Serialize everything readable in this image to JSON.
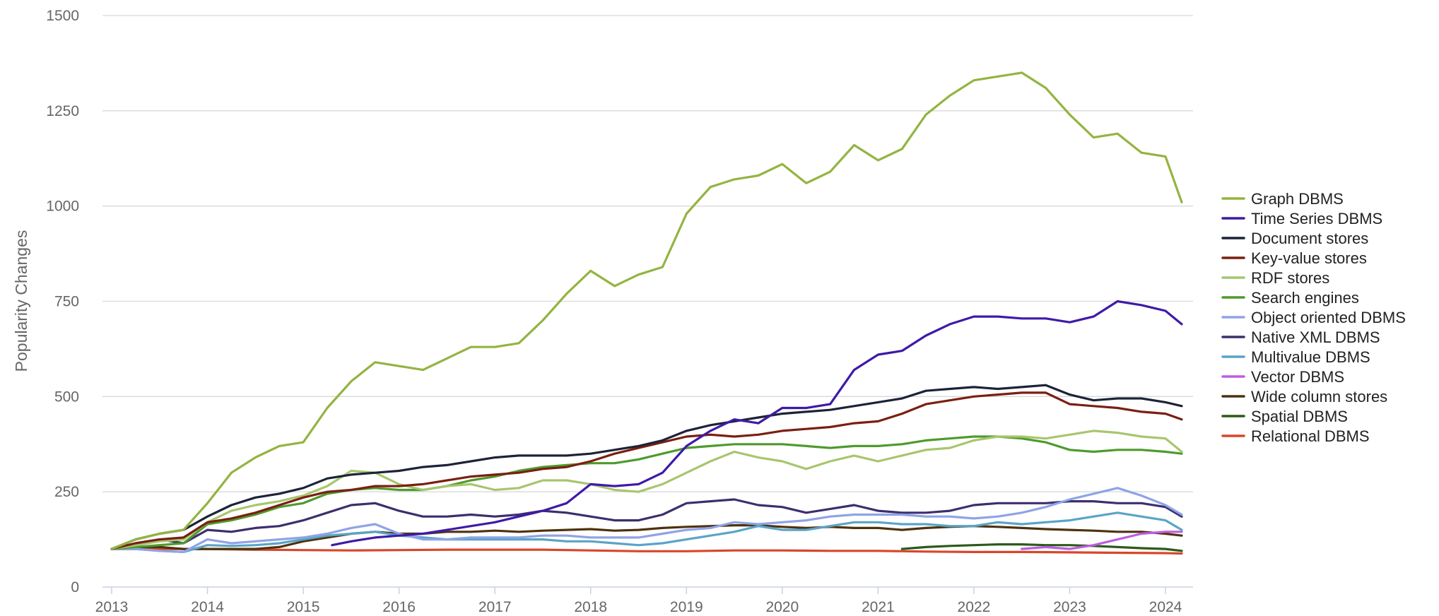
{
  "chart_data": {
    "type": "line",
    "ylabel": "Popularity Changes",
    "xlabel": "",
    "ylim": [
      0,
      1500
    ],
    "xlim": [
      2013,
      2024.25
    ],
    "y_ticks": [
      "0",
      "250",
      "500",
      "750",
      "1000",
      "1250",
      "1500"
    ],
    "x_ticks": [
      "2013",
      "2014",
      "2015",
      "2016",
      "2017",
      "2018",
      "2019",
      "2020",
      "2021",
      "2022",
      "2023",
      "2024"
    ],
    "grid": "horizontal",
    "legend_position": "right",
    "series": [
      {
        "name": "Graph DBMS",
        "color": "#93b441",
        "x": [
          2013,
          2013.25,
          2013.5,
          2013.75,
          2014,
          2014.25,
          2014.5,
          2014.75,
          2015,
          2015.25,
          2015.5,
          2015.75,
          2016,
          2016.25,
          2016.5,
          2016.75,
          2017,
          2017.25,
          2017.5,
          2017.75,
          2018,
          2018.25,
          2018.5,
          2018.75,
          2019,
          2019.25,
          2019.5,
          2019.75,
          2020,
          2020.25,
          2020.5,
          2020.75,
          2021,
          2021.25,
          2021.5,
          2021.75,
          2022,
          2022.25,
          2022.5,
          2022.75,
          2023,
          2023.25,
          2023.5,
          2023.75,
          2024,
          2024.17
        ],
        "y": [
          100,
          125,
          140,
          150,
          220,
          300,
          340,
          370,
          380,
          470,
          540,
          590,
          580,
          570,
          600,
          630,
          630,
          640,
          700,
          770,
          830,
          790,
          820,
          840,
          980,
          1050,
          1070,
          1080,
          1110,
          1060,
          1090,
          1160,
          1120,
          1150,
          1240,
          1290,
          1330,
          1340,
          1350,
          1310,
          1240,
          1180,
          1190,
          1140,
          1130,
          1010
        ]
      },
      {
        "name": "Time Series DBMS",
        "color": "#3f1aa7",
        "x": [
          2015.3,
          2015.5,
          2015.75,
          2016,
          2016.25,
          2016.5,
          2016.75,
          2017,
          2017.25,
          2017.5,
          2017.75,
          2018,
          2018.25,
          2018.5,
          2018.75,
          2019,
          2019.25,
          2019.5,
          2019.75,
          2020,
          2020.25,
          2020.5,
          2020.75,
          2021,
          2021.25,
          2021.5,
          2021.75,
          2022,
          2022.25,
          2022.5,
          2022.75,
          2023,
          2023.25,
          2023.5,
          2023.75,
          2024,
          2024.17
        ],
        "y": [
          110,
          120,
          130,
          135,
          140,
          150,
          160,
          170,
          185,
          200,
          220,
          270,
          265,
          270,
          300,
          370,
          410,
          440,
          430,
          470,
          470,
          480,
          570,
          610,
          620,
          660,
          690,
          710,
          710,
          705,
          705,
          695,
          710,
          750,
          740,
          725,
          690
        ]
      },
      {
        "name": "Document stores",
        "color": "#1c2338",
        "x": [
          2013,
          2013.25,
          2013.5,
          2013.75,
          2014,
          2014.25,
          2014.5,
          2014.75,
          2015,
          2015.25,
          2015.5,
          2015.75,
          2016,
          2016.25,
          2016.5,
          2016.75,
          2017,
          2017.25,
          2017.5,
          2017.75,
          2018,
          2018.25,
          2018.5,
          2018.75,
          2019,
          2019.25,
          2019.5,
          2019.75,
          2020,
          2020.25,
          2020.5,
          2020.75,
          2021,
          2021.25,
          2021.5,
          2021.75,
          2022,
          2022.25,
          2022.5,
          2022.75,
          2023,
          2023.25,
          2023.5,
          2023.75,
          2024,
          2024.17
        ],
        "y": [
          100,
          125,
          140,
          150,
          185,
          215,
          235,
          245,
          260,
          285,
          295,
          300,
          305,
          315,
          320,
          330,
          340,
          345,
          345,
          345,
          350,
          360,
          370,
          385,
          410,
          425,
          435,
          445,
          455,
          460,
          465,
          475,
          485,
          495,
          515,
          520,
          525,
          520,
          525,
          530,
          505,
          490,
          495,
          495,
          485,
          475
        ]
      },
      {
        "name": "Key-value stores",
        "color": "#7a1f12",
        "x": [
          2013,
          2013.25,
          2013.5,
          2013.75,
          2014,
          2014.25,
          2014.5,
          2014.75,
          2015,
          2015.25,
          2015.5,
          2015.75,
          2016,
          2016.25,
          2016.5,
          2016.75,
          2017,
          2017.25,
          2017.5,
          2017.75,
          2018,
          2018.25,
          2018.5,
          2018.75,
          2019,
          2019.25,
          2019.5,
          2019.75,
          2020,
          2020.25,
          2020.5,
          2020.75,
          2021,
          2021.25,
          2021.5,
          2021.75,
          2022,
          2022.25,
          2022.5,
          2022.75,
          2023,
          2023.25,
          2023.5,
          2023.75,
          2024,
          2024.17
        ],
        "y": [
          100,
          115,
          125,
          130,
          170,
          180,
          195,
          215,
          235,
          250,
          255,
          265,
          265,
          270,
          280,
          290,
          295,
          300,
          310,
          315,
          330,
          350,
          365,
          380,
          395,
          400,
          395,
          400,
          410,
          415,
          420,
          430,
          435,
          455,
          480,
          490,
          500,
          505,
          510,
          510,
          480,
          475,
          470,
          460,
          455,
          440
        ]
      },
      {
        "name": "RDF stores",
        "color": "#a7c66e",
        "x": [
          2013,
          2013.25,
          2013.5,
          2013.75,
          2014,
          2014.25,
          2014.5,
          2014.75,
          2015,
          2015.25,
          2015.5,
          2015.75,
          2016,
          2016.25,
          2016.5,
          2016.75,
          2017,
          2017.25,
          2017.5,
          2017.75,
          2018,
          2018.25,
          2018.5,
          2018.75,
          2019,
          2019.25,
          2019.5,
          2019.75,
          2020,
          2020.25,
          2020.5,
          2020.75,
          2021,
          2021.25,
          2021.5,
          2021.75,
          2022,
          2022.25,
          2022.5,
          2022.75,
          2023,
          2023.25,
          2023.5,
          2023.75,
          2024,
          2024.17
        ],
        "y": [
          100,
          110,
          120,
          125,
          170,
          200,
          215,
          225,
          240,
          265,
          305,
          300,
          270,
          255,
          265,
          270,
          255,
          260,
          280,
          280,
          270,
          255,
          250,
          270,
          300,
          330,
          355,
          340,
          330,
          310,
          330,
          345,
          330,
          345,
          360,
          365,
          385,
          395,
          395,
          390,
          400,
          410,
          405,
          395,
          390,
          355
        ]
      },
      {
        "name": "Search engines",
        "color": "#4f9a2d",
        "x": [
          2013,
          2013.25,
          2013.5,
          2013.75,
          2014,
          2014.25,
          2014.5,
          2014.75,
          2015,
          2015.25,
          2015.5,
          2015.75,
          2016,
          2016.25,
          2016.5,
          2016.75,
          2017,
          2017.25,
          2017.5,
          2017.75,
          2018,
          2018.25,
          2018.5,
          2018.75,
          2019,
          2019.25,
          2019.5,
          2019.75,
          2020,
          2020.25,
          2020.5,
          2020.75,
          2021,
          2021.25,
          2021.5,
          2021.75,
          2022,
          2022.25,
          2022.5,
          2022.75,
          2023,
          2023.25,
          2023.5,
          2023.75,
          2024,
          2024.17
        ],
        "y": [
          100,
          105,
          110,
          115,
          165,
          175,
          190,
          210,
          220,
          245,
          255,
          260,
          255,
          255,
          265,
          280,
          290,
          305,
          315,
          320,
          325,
          325,
          335,
          350,
          365,
          370,
          375,
          375,
          375,
          370,
          365,
          370,
          370,
          375,
          385,
          390,
          395,
          395,
          390,
          380,
          360,
          355,
          360,
          360,
          355,
          350
        ]
      },
      {
        "name": "Object oriented DBMS",
        "color": "#8fa3e6",
        "x": [
          2013,
          2013.25,
          2013.5,
          2013.75,
          2014,
          2014.25,
          2014.5,
          2014.75,
          2015,
          2015.25,
          2015.5,
          2015.75,
          2016,
          2016.25,
          2016.5,
          2016.75,
          2017,
          2017.25,
          2017.5,
          2017.75,
          2018,
          2018.25,
          2018.5,
          2018.75,
          2019,
          2019.25,
          2019.5,
          2019.75,
          2020,
          2020.25,
          2020.5,
          2020.75,
          2021,
          2021.25,
          2021.5,
          2021.75,
          2022,
          2022.25,
          2022.5,
          2022.75,
          2023,
          2023.25,
          2023.5,
          2023.75,
          2024,
          2024.17
        ],
        "y": [
          100,
          100,
          95,
          92,
          125,
          115,
          120,
          125,
          130,
          140,
          155,
          165,
          140,
          125,
          125,
          130,
          130,
          130,
          135,
          135,
          130,
          130,
          130,
          140,
          150,
          155,
          170,
          165,
          170,
          175,
          185,
          190,
          190,
          190,
          185,
          185,
          180,
          185,
          195,
          210,
          230,
          245,
          260,
          240,
          215,
          190
        ]
      },
      {
        "name": "Native XML DBMS",
        "color": "#3d2e6e",
        "x": [
          2013,
          2013.25,
          2013.5,
          2013.75,
          2014,
          2014.25,
          2014.5,
          2014.75,
          2015,
          2015.25,
          2015.5,
          2015.75,
          2016,
          2016.25,
          2016.5,
          2016.75,
          2017,
          2017.25,
          2017.5,
          2017.75,
          2018,
          2018.25,
          2018.5,
          2018.75,
          2019,
          2019.25,
          2019.5,
          2019.75,
          2020,
          2020.25,
          2020.5,
          2020.75,
          2021,
          2021.25,
          2021.5,
          2021.75,
          2022,
          2022.25,
          2022.5,
          2022.75,
          2023,
          2023.25,
          2023.5,
          2023.75,
          2024,
          2024.17
        ],
        "y": [
          100,
          115,
          125,
          115,
          150,
          145,
          155,
          160,
          175,
          195,
          215,
          220,
          200,
          185,
          185,
          190,
          185,
          190,
          200,
          195,
          185,
          175,
          175,
          190,
          220,
          225,
          230,
          215,
          210,
          195,
          205,
          215,
          200,
          195,
          195,
          200,
          215,
          220,
          220,
          220,
          225,
          225,
          220,
          220,
          210,
          185
        ]
      },
      {
        "name": "Multivalue DBMS",
        "color": "#5aa4c7",
        "x": [
          2013,
          2013.25,
          2013.5,
          2013.75,
          2014,
          2014.25,
          2014.5,
          2014.75,
          2015,
          2015.25,
          2015.5,
          2015.75,
          2016,
          2016.25,
          2016.5,
          2016.75,
          2017,
          2017.25,
          2017.5,
          2017.75,
          2018,
          2018.25,
          2018.5,
          2018.75,
          2019,
          2019.25,
          2019.5,
          2019.75,
          2020,
          2020.25,
          2020.5,
          2020.75,
          2021,
          2021.25,
          2021.5,
          2021.75,
          2022,
          2022.25,
          2022.5,
          2022.75,
          2023,
          2023.25,
          2023.5,
          2023.75,
          2024,
          2024.17
        ],
        "y": [
          100,
          100,
          95,
          92,
          110,
          108,
          110,
          115,
          125,
          135,
          140,
          145,
          135,
          130,
          125,
          125,
          125,
          125,
          125,
          120,
          120,
          115,
          110,
          115,
          125,
          135,
          145,
          160,
          150,
          150,
          160,
          170,
          170,
          165,
          165,
          160,
          160,
          170,
          165,
          170,
          175,
          185,
          195,
          185,
          175,
          150
        ]
      },
      {
        "name": "Vector DBMS",
        "color": "#c05ce0",
        "x": [
          2022.5,
          2022.75,
          2023,
          2023.25,
          2023.5,
          2023.75,
          2024,
          2024.17
        ],
        "y": [
          100,
          105,
          100,
          110,
          125,
          140,
          145,
          145
        ]
      },
      {
        "name": "Wide column stores",
        "color": "#4d320e",
        "x": [
          2013,
          2013.25,
          2013.5,
          2013.75,
          2014,
          2014.25,
          2014.5,
          2014.75,
          2015,
          2015.25,
          2015.5,
          2015.75,
          2016,
          2016.25,
          2016.5,
          2016.75,
          2017,
          2017.25,
          2017.5,
          2017.75,
          2018,
          2018.25,
          2018.5,
          2018.75,
          2019,
          2019.25,
          2019.5,
          2019.75,
          2020,
          2020.25,
          2020.5,
          2020.75,
          2021,
          2021.25,
          2021.5,
          2021.75,
          2022,
          2022.25,
          2022.5,
          2022.75,
          2023,
          2023.25,
          2023.5,
          2023.75,
          2024,
          2024.17
        ],
        "y": [
          100,
          105,
          105,
          100,
          100,
          100,
          100,
          105,
          120,
          130,
          140,
          145,
          140,
          140,
          145,
          145,
          148,
          145,
          148,
          150,
          152,
          148,
          150,
          155,
          158,
          160,
          162,
          162,
          158,
          155,
          158,
          155,
          155,
          150,
          155,
          158,
          160,
          158,
          155,
          152,
          150,
          148,
          145,
          145,
          140,
          135
        ]
      },
      {
        "name": "Spatial DBMS",
        "color": "#2b5a1a",
        "x": [
          2021.25,
          2021.5,
          2021.75,
          2022,
          2022.25,
          2022.5,
          2022.75,
          2023,
          2023.25,
          2023.5,
          2023.75,
          2024,
          2024.17
        ],
        "y": [
          100,
          105,
          108,
          110,
          112,
          112,
          110,
          110,
          108,
          105,
          102,
          100,
          95
        ]
      },
      {
        "name": "Relational DBMS",
        "color": "#d7472a",
        "x": [
          2013,
          2013.5,
          2014,
          2014.5,
          2015,
          2015.5,
          2016,
          2016.5,
          2017,
          2017.5,
          2018,
          2018.5,
          2019,
          2019.5,
          2020,
          2020.5,
          2021,
          2021.5,
          2022,
          2022.5,
          2023,
          2023.5,
          2024,
          2024.17
        ],
        "y": [
          100,
          100,
          100,
          98,
          97,
          96,
          97,
          98,
          98,
          98,
          96,
          94,
          94,
          96,
          96,
          95,
          95,
          93,
          92,
          92,
          91,
          90,
          89,
          88
        ]
      }
    ]
  }
}
